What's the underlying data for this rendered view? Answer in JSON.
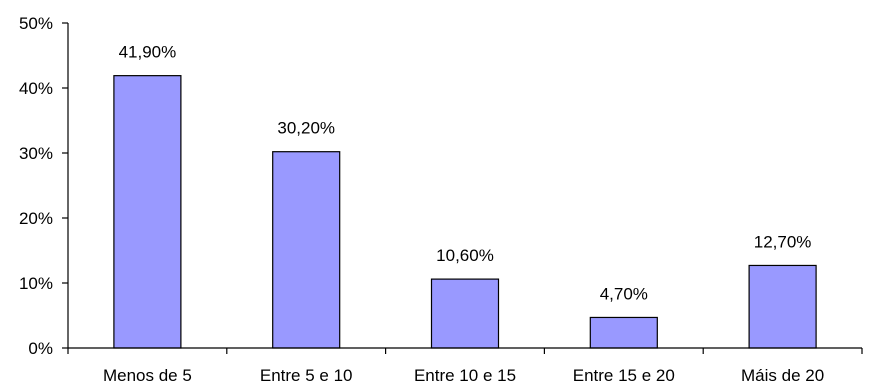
{
  "chart_data": {
    "type": "bar",
    "categories": [
      "Menos de 5",
      "Entre 5 e 10",
      "Entre 10 e 15",
      "Entre 15 e 20",
      "Máis de 20"
    ],
    "values": [
      41.9,
      30.2,
      10.6,
      4.7,
      12.7
    ],
    "data_labels": [
      "41,90%",
      "30,20%",
      "10,60%",
      "4,70%",
      "12,70%"
    ],
    "y_ticks": [
      0,
      10,
      20,
      30,
      40,
      50
    ],
    "y_tick_labels": [
      "0%",
      "10%",
      "20%",
      "30%",
      "40%",
      "50%"
    ],
    "ylim": [
      0,
      50
    ],
    "title": "",
    "xlabel": "",
    "ylabel": "",
    "grid": false,
    "legend": "none",
    "colors": {
      "bar_fill": "#9999ff",
      "bar_stroke": "#000000",
      "axis": "#000000",
      "text": "#000000"
    }
  }
}
